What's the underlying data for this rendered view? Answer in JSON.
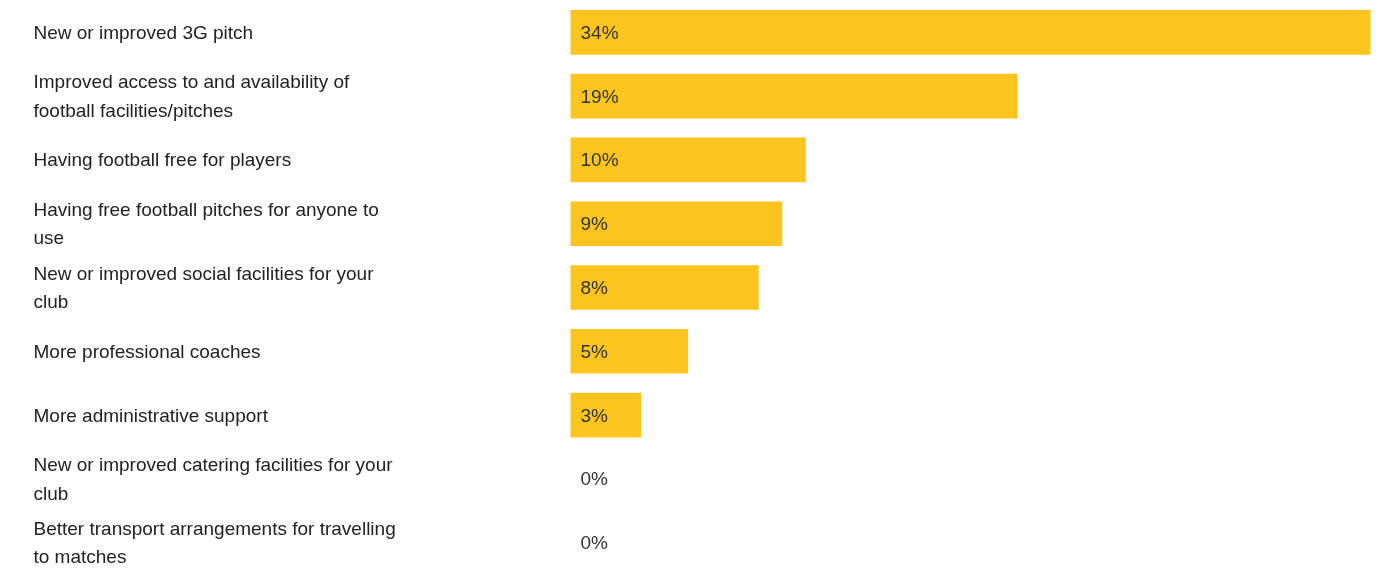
{
  "chart_data": {
    "type": "bar",
    "orientation": "horizontal",
    "color": "#fcc41f",
    "categories": [
      "New or improved 3G pitch",
      "Improved access to and availability of football facilities/pitches",
      "Having football free for players",
      "Having free football pitches for anyone to use",
      "New or improved social facilities for your club",
      "More professional coaches",
      "More administrative support",
      "New or improved catering facilities for your club",
      "Better transport arrangements for travelling to matches"
    ],
    "values": [
      34,
      19,
      10,
      9,
      8,
      5,
      3,
      0,
      0
    ],
    "value_labels": [
      "34%",
      "19%",
      "10%",
      "9%",
      "8%",
      "5%",
      "3%",
      "0%",
      "0%"
    ]
  }
}
